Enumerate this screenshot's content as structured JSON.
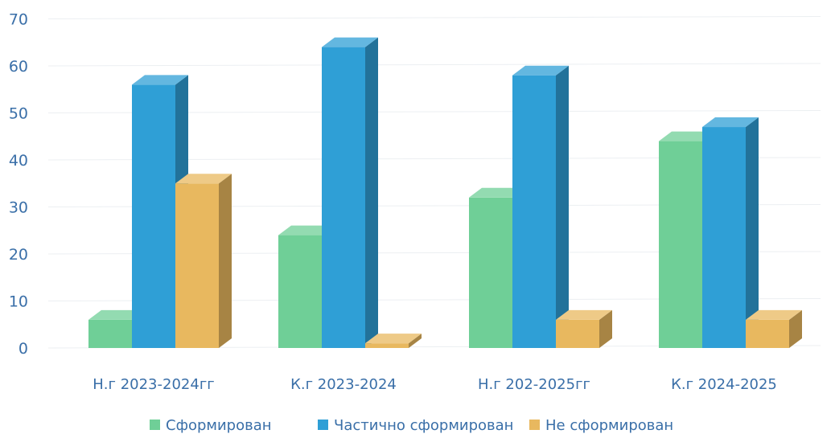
{
  "chart_data": {
    "type": "bar",
    "categories": [
      "Н.г 2023-2024гг",
      "К.г 2023-2024",
      "Н.г 202-2025гг",
      "К.г 2024-2025"
    ],
    "series": [
      {
        "name": "Сформирован",
        "values": [
          6,
          24,
          32,
          44
        ],
        "color": "#6fcf97"
      },
      {
        "name": "Частично сформирован",
        "values": [
          56,
          64,
          58,
          47
        ],
        "color": "#2f9fd6"
      },
      {
        "name": "Не сформирован",
        "values": [
          35,
          1,
          6,
          6
        ],
        "color": "#e8b85f"
      }
    ],
    "title": "",
    "xlabel": "",
    "ylabel": "",
    "ylim": [
      0,
      70
    ],
    "yticks": [
      0,
      10,
      20,
      30,
      40,
      50,
      60,
      70
    ],
    "grid": true,
    "legend_position": "bottom",
    "style": "3d-column"
  }
}
